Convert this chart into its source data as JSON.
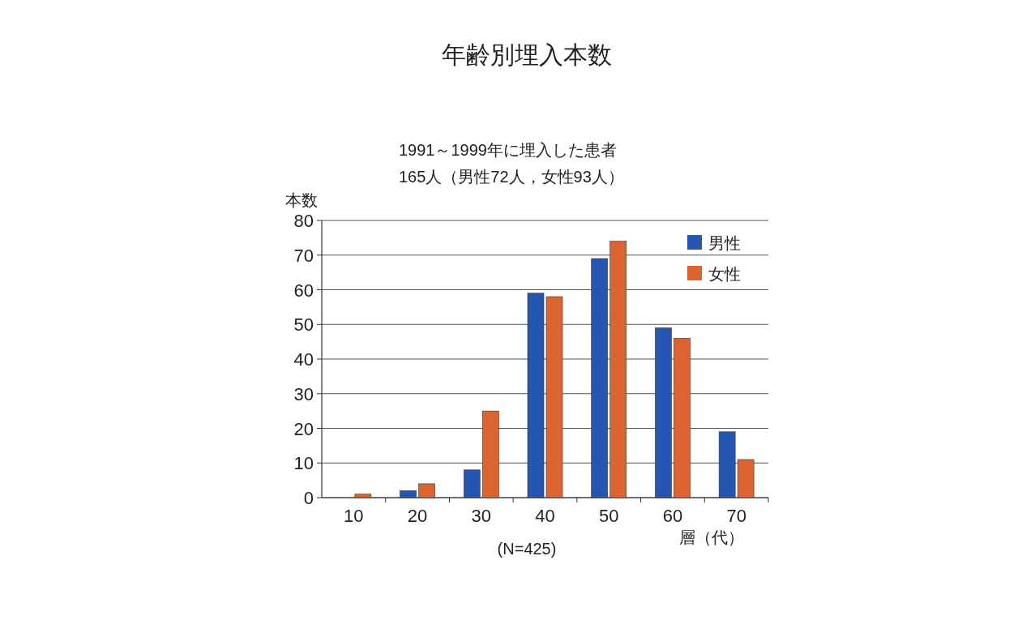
{
  "chart_data": {
    "type": "bar",
    "title": "年齢別埋入本数",
    "subtitle": "1991～1999年に埋入した患者\n165人（男性72人，女性93人）",
    "ylabel": "本数",
    "xlabel": "層（代）",
    "annotations": [
      "(N=425)"
    ],
    "categories": [
      "10",
      "20",
      "30",
      "40",
      "50",
      "60",
      "70"
    ],
    "series": [
      {
        "name": "男性",
        "color": "#2456b2",
        "values": [
          0,
          2,
          8,
          59,
          69,
          49,
          19
        ]
      },
      {
        "name": "女性",
        "color": "#db6430",
        "values": [
          1,
          4,
          25,
          58,
          74,
          46,
          11
        ]
      }
    ],
    "ylim": [
      0,
      80
    ],
    "yticks": [
      0,
      10,
      20,
      30,
      40,
      50,
      60,
      70,
      80
    ],
    "grid": "y",
    "legend": "top right"
  }
}
